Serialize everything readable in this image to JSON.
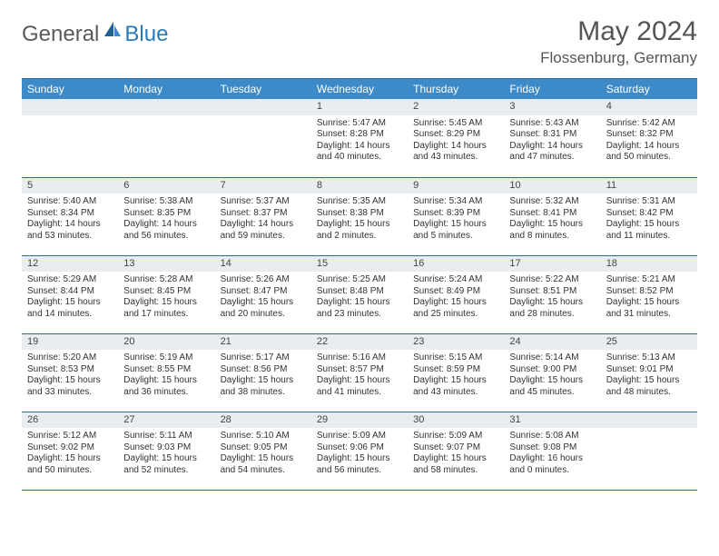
{
  "brand": {
    "part1": "General",
    "part2": "Blue"
  },
  "title": "May 2024",
  "location": "Flossenburg, Germany",
  "colors": {
    "header_bg": "#3d8ac9",
    "border": "#2a6aa8",
    "daynum_bg": "#e9edf0",
    "text": "#333333",
    "logo_gray": "#5a5a5a",
    "logo_blue": "#2a7ab8",
    "page_bg": "#ffffff"
  },
  "fonts": {
    "base_family": "Arial",
    "title_size_pt": 30,
    "location_size_pt": 17,
    "th_size_pt": 12,
    "cell_size_pt": 10
  },
  "day_headers": [
    "Sunday",
    "Monday",
    "Tuesday",
    "Wednesday",
    "Thursday",
    "Friday",
    "Saturday"
  ],
  "weeks": [
    [
      {
        "day": "",
        "sunrise": "",
        "sunset": "",
        "daylight": ""
      },
      {
        "day": "",
        "sunrise": "",
        "sunset": "",
        "daylight": ""
      },
      {
        "day": "",
        "sunrise": "",
        "sunset": "",
        "daylight": ""
      },
      {
        "day": "1",
        "sunrise": "Sunrise: 5:47 AM",
        "sunset": "Sunset: 8:28 PM",
        "daylight": "Daylight: 14 hours and 40 minutes."
      },
      {
        "day": "2",
        "sunrise": "Sunrise: 5:45 AM",
        "sunset": "Sunset: 8:29 PM",
        "daylight": "Daylight: 14 hours and 43 minutes."
      },
      {
        "day": "3",
        "sunrise": "Sunrise: 5:43 AM",
        "sunset": "Sunset: 8:31 PM",
        "daylight": "Daylight: 14 hours and 47 minutes."
      },
      {
        "day": "4",
        "sunrise": "Sunrise: 5:42 AM",
        "sunset": "Sunset: 8:32 PM",
        "daylight": "Daylight: 14 hours and 50 minutes."
      }
    ],
    [
      {
        "day": "5",
        "sunrise": "Sunrise: 5:40 AM",
        "sunset": "Sunset: 8:34 PM",
        "daylight": "Daylight: 14 hours and 53 minutes."
      },
      {
        "day": "6",
        "sunrise": "Sunrise: 5:38 AM",
        "sunset": "Sunset: 8:35 PM",
        "daylight": "Daylight: 14 hours and 56 minutes."
      },
      {
        "day": "7",
        "sunrise": "Sunrise: 5:37 AM",
        "sunset": "Sunset: 8:37 PM",
        "daylight": "Daylight: 14 hours and 59 minutes."
      },
      {
        "day": "8",
        "sunrise": "Sunrise: 5:35 AM",
        "sunset": "Sunset: 8:38 PM",
        "daylight": "Daylight: 15 hours and 2 minutes."
      },
      {
        "day": "9",
        "sunrise": "Sunrise: 5:34 AM",
        "sunset": "Sunset: 8:39 PM",
        "daylight": "Daylight: 15 hours and 5 minutes."
      },
      {
        "day": "10",
        "sunrise": "Sunrise: 5:32 AM",
        "sunset": "Sunset: 8:41 PM",
        "daylight": "Daylight: 15 hours and 8 minutes."
      },
      {
        "day": "11",
        "sunrise": "Sunrise: 5:31 AM",
        "sunset": "Sunset: 8:42 PM",
        "daylight": "Daylight: 15 hours and 11 minutes."
      }
    ],
    [
      {
        "day": "12",
        "sunrise": "Sunrise: 5:29 AM",
        "sunset": "Sunset: 8:44 PM",
        "daylight": "Daylight: 15 hours and 14 minutes."
      },
      {
        "day": "13",
        "sunrise": "Sunrise: 5:28 AM",
        "sunset": "Sunset: 8:45 PM",
        "daylight": "Daylight: 15 hours and 17 minutes."
      },
      {
        "day": "14",
        "sunrise": "Sunrise: 5:26 AM",
        "sunset": "Sunset: 8:47 PM",
        "daylight": "Daylight: 15 hours and 20 minutes."
      },
      {
        "day": "15",
        "sunrise": "Sunrise: 5:25 AM",
        "sunset": "Sunset: 8:48 PM",
        "daylight": "Daylight: 15 hours and 23 minutes."
      },
      {
        "day": "16",
        "sunrise": "Sunrise: 5:24 AM",
        "sunset": "Sunset: 8:49 PM",
        "daylight": "Daylight: 15 hours and 25 minutes."
      },
      {
        "day": "17",
        "sunrise": "Sunrise: 5:22 AM",
        "sunset": "Sunset: 8:51 PM",
        "daylight": "Daylight: 15 hours and 28 minutes."
      },
      {
        "day": "18",
        "sunrise": "Sunrise: 5:21 AM",
        "sunset": "Sunset: 8:52 PM",
        "daylight": "Daylight: 15 hours and 31 minutes."
      }
    ],
    [
      {
        "day": "19",
        "sunrise": "Sunrise: 5:20 AM",
        "sunset": "Sunset: 8:53 PM",
        "daylight": "Daylight: 15 hours and 33 minutes."
      },
      {
        "day": "20",
        "sunrise": "Sunrise: 5:19 AM",
        "sunset": "Sunset: 8:55 PM",
        "daylight": "Daylight: 15 hours and 36 minutes."
      },
      {
        "day": "21",
        "sunrise": "Sunrise: 5:17 AM",
        "sunset": "Sunset: 8:56 PM",
        "daylight": "Daylight: 15 hours and 38 minutes."
      },
      {
        "day": "22",
        "sunrise": "Sunrise: 5:16 AM",
        "sunset": "Sunset: 8:57 PM",
        "daylight": "Daylight: 15 hours and 41 minutes."
      },
      {
        "day": "23",
        "sunrise": "Sunrise: 5:15 AM",
        "sunset": "Sunset: 8:59 PM",
        "daylight": "Daylight: 15 hours and 43 minutes."
      },
      {
        "day": "24",
        "sunrise": "Sunrise: 5:14 AM",
        "sunset": "Sunset: 9:00 PM",
        "daylight": "Daylight: 15 hours and 45 minutes."
      },
      {
        "day": "25",
        "sunrise": "Sunrise: 5:13 AM",
        "sunset": "Sunset: 9:01 PM",
        "daylight": "Daylight: 15 hours and 48 minutes."
      }
    ],
    [
      {
        "day": "26",
        "sunrise": "Sunrise: 5:12 AM",
        "sunset": "Sunset: 9:02 PM",
        "daylight": "Daylight: 15 hours and 50 minutes."
      },
      {
        "day": "27",
        "sunrise": "Sunrise: 5:11 AM",
        "sunset": "Sunset: 9:03 PM",
        "daylight": "Daylight: 15 hours and 52 minutes."
      },
      {
        "day": "28",
        "sunrise": "Sunrise: 5:10 AM",
        "sunset": "Sunset: 9:05 PM",
        "daylight": "Daylight: 15 hours and 54 minutes."
      },
      {
        "day": "29",
        "sunrise": "Sunrise: 5:09 AM",
        "sunset": "Sunset: 9:06 PM",
        "daylight": "Daylight: 15 hours and 56 minutes."
      },
      {
        "day": "30",
        "sunrise": "Sunrise: 5:09 AM",
        "sunset": "Sunset: 9:07 PM",
        "daylight": "Daylight: 15 hours and 58 minutes."
      },
      {
        "day": "31",
        "sunrise": "Sunrise: 5:08 AM",
        "sunset": "Sunset: 9:08 PM",
        "daylight": "Daylight: 16 hours and 0 minutes."
      },
      {
        "day": "",
        "sunrise": "",
        "sunset": "",
        "daylight": ""
      }
    ]
  ]
}
